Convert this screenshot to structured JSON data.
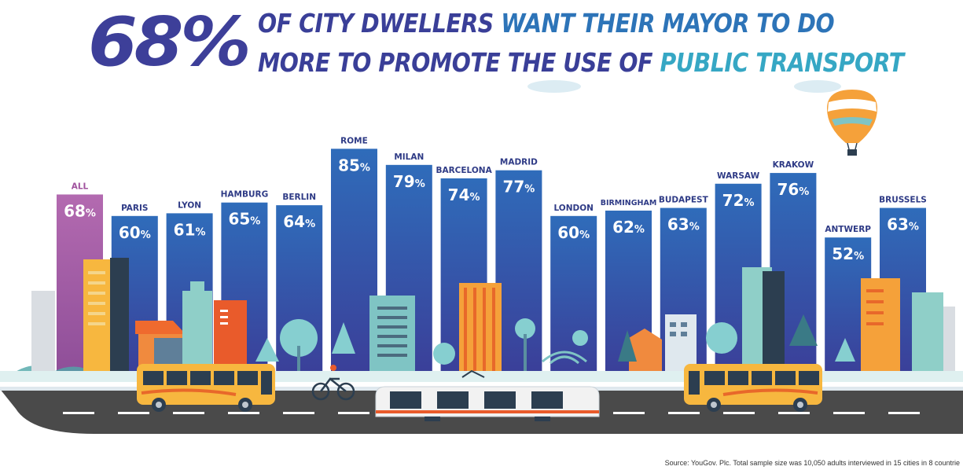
{
  "headline": {
    "percent": "68%",
    "line1_a": "OF CITY DWELLERS ",
    "line1_b": "WANT THEIR MAYOR TO DO",
    "line2_a": "MORE TO PROMOTE THE USE OF ",
    "line2_b": "PUBLIC TRANSPORT"
  },
  "source": "Source: YouGov. Plc. Total sample size was 10,050 adults interviewed in 15 cities in 8 countrie",
  "colors": {
    "bar_blue_top": "#2f6cba",
    "bar_blue_bottom": "#3b3e98",
    "bar_all_top": "#b36ab0",
    "bar_all_bottom": "#94519a",
    "label_all": "#a0529e",
    "label_city": "#2f3b86"
  },
  "chart_data": {
    "type": "bar",
    "title": "",
    "xlabel": "",
    "ylabel": "",
    "ylim": [
      0,
      100
    ],
    "grid": false,
    "categories": [
      "ALL",
      "PARIS",
      "LYON",
      "HAMBURG",
      "BERLIN",
      "ROME",
      "MILAN",
      "BARCELONA",
      "MADRID",
      "LONDON",
      "BIRMINGHAM",
      "BUDAPEST",
      "WARSAW",
      "KRAKOW",
      "ANTWERP",
      "BRUSSELS"
    ],
    "values": [
      68,
      60,
      61,
      65,
      64,
      85,
      79,
      74,
      77,
      60,
      62,
      63,
      72,
      76,
      52,
      63
    ],
    "value_labels": [
      "68",
      "60",
      "61",
      "65",
      "64",
      "85",
      "79",
      "74",
      "77",
      "60",
      "62",
      "63",
      "72",
      "76",
      "52",
      "63"
    ],
    "unit": "%"
  }
}
